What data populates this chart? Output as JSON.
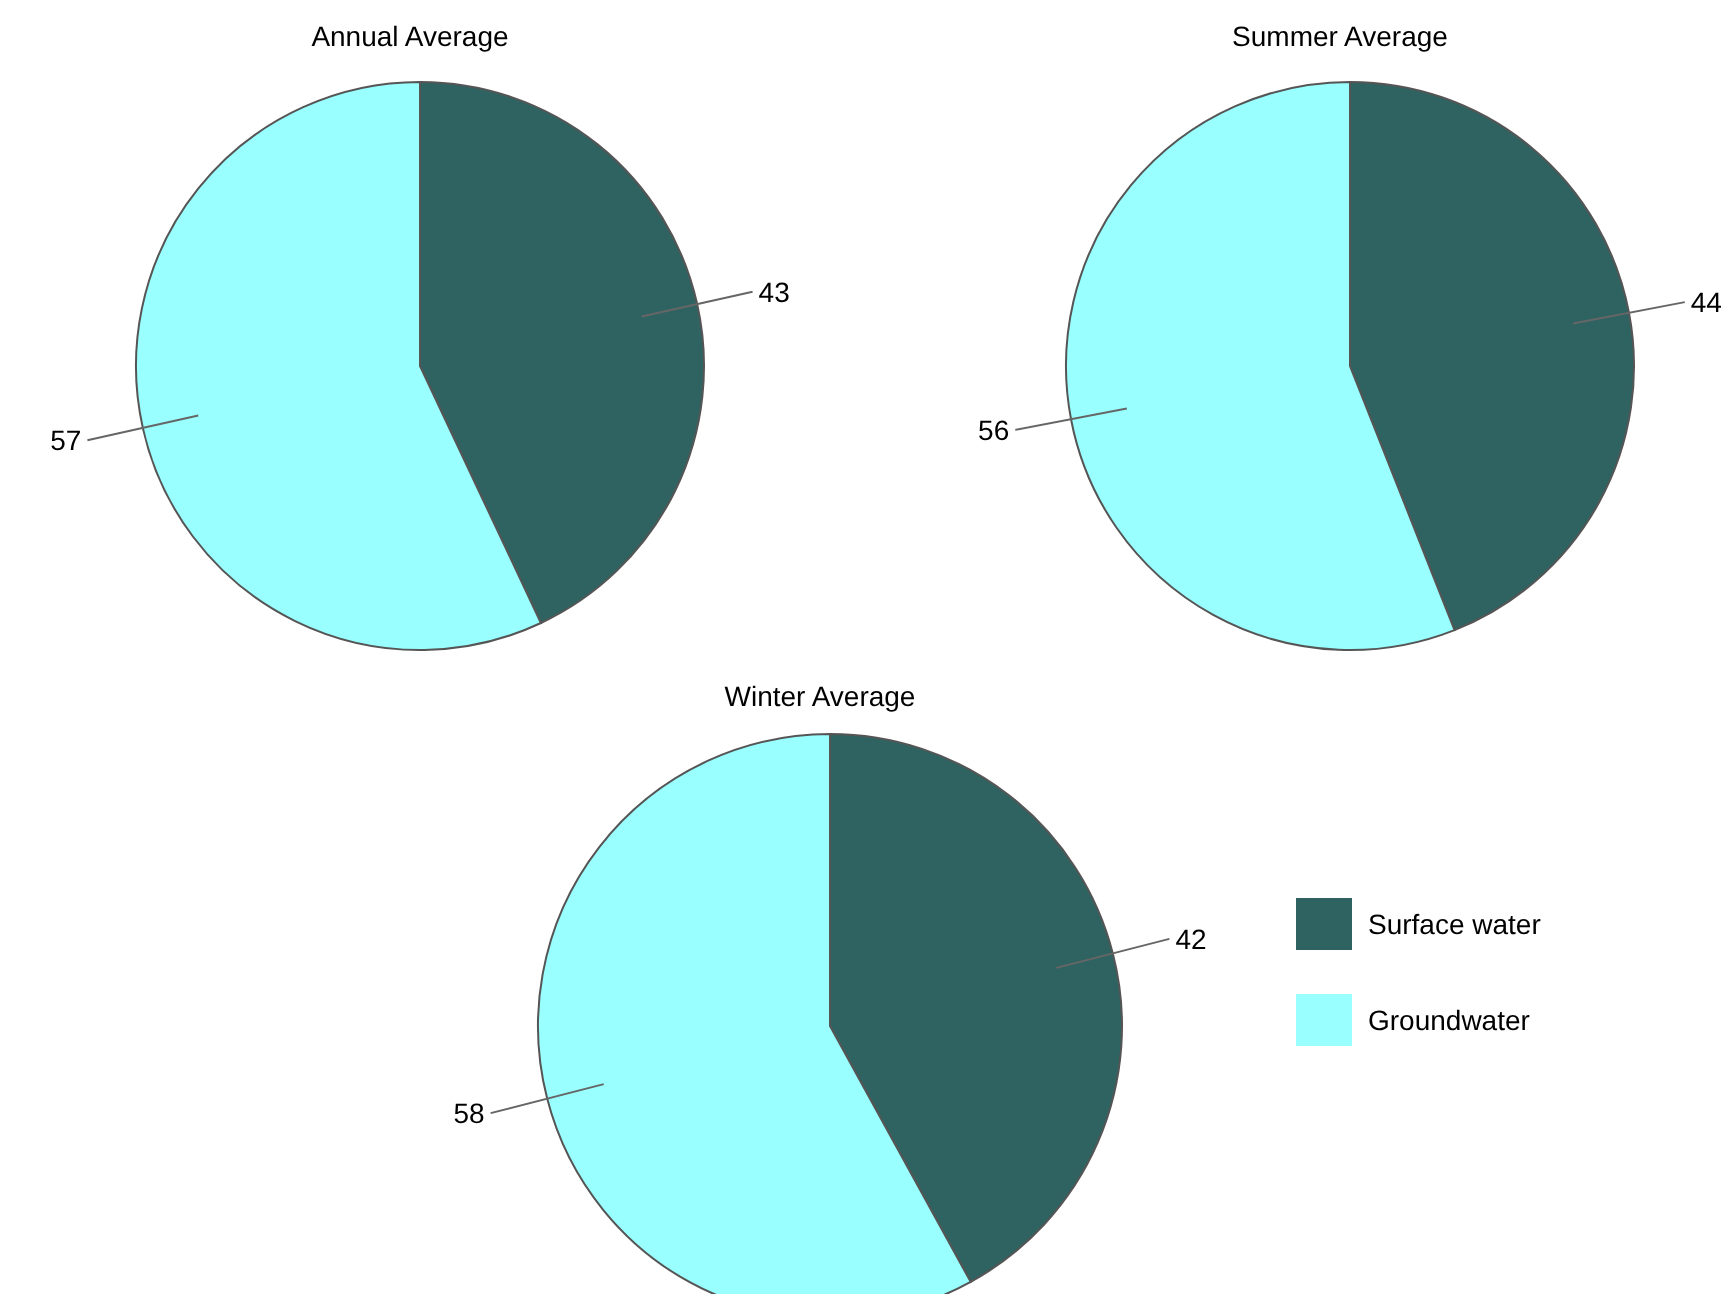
{
  "chart_data": [
    {
      "type": "pie",
      "title": "Annual Average",
      "categories": [
        null,
        null
      ],
      "values": [
        43,
        57
      ],
      "colors": [
        "#2f6362",
        "#99ffff"
      ],
      "data_labels": true
    },
    {
      "type": "pie",
      "title": "Summer Average",
      "categories": [
        null,
        null
      ],
      "values": [
        44,
        56
      ],
      "colors": [
        "#2f6362",
        "#99ffff"
      ],
      "data_labels": true
    },
    {
      "type": "pie",
      "title": "Winter Average",
      "categories": [
        "Surface water",
        "Groundwater"
      ],
      "values": [
        42,
        58
      ],
      "colors": [
        "#2f6362",
        "#99ffff"
      ],
      "data_labels": true,
      "legend": "right"
    }
  ]
}
